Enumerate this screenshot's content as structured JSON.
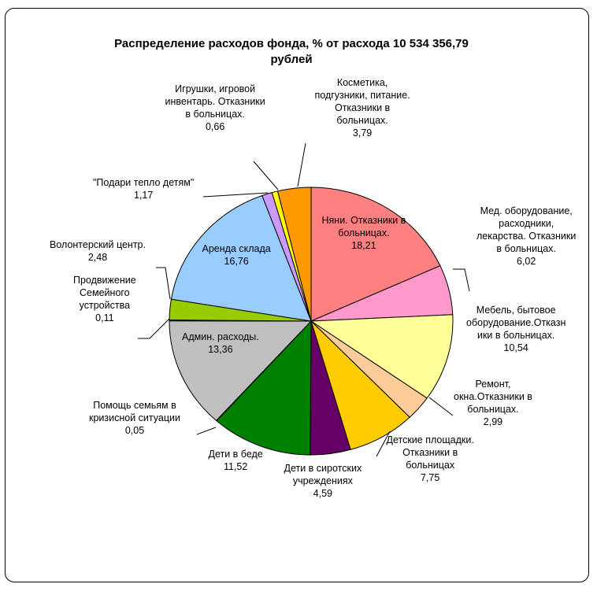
{
  "chart_data": {
    "type": "pie",
    "title_lines": [
      "Распределение расходов фонда, % от расхода 10 534 356,79",
      "рублей"
    ],
    "slices": [
      {
        "label_lines": [
          "Няни. Отказники в",
          "больницах."
        ],
        "value": 18.21,
        "value_text": "18,21",
        "color": "#ff8080"
      },
      {
        "label_lines": [
          "Мед. оборудование,",
          "расходники,",
          "лекарства. Отказники",
          "в больницах."
        ],
        "value": 6.02,
        "value_text": "6,02",
        "color": "#ff99cc"
      },
      {
        "label_lines": [
          "Мебель, бытовое",
          "оборудование.Отказн",
          "ики в больницах."
        ],
        "value": 10.54,
        "value_text": "10,54",
        "color": "#ffff99"
      },
      {
        "label_lines": [
          "Ремонт,",
          "окна.Отказники в",
          "больницах."
        ],
        "value": 2.99,
        "value_text": "2,99",
        "color": "#fdcc99"
      },
      {
        "label_lines": [
          "Детские площадки.",
          "Отказники в",
          "больницах"
        ],
        "value": 7.75,
        "value_text": "7,75",
        "color": "#ffcc00"
      },
      {
        "label_lines": [
          "Дети в сиротских",
          "учреждениях"
        ],
        "value": 4.59,
        "value_text": "4,59",
        "color": "#660066"
      },
      {
        "label_lines": [
          "Дети в беде"
        ],
        "value": 11.52,
        "value_text": "11,52",
        "color": "#008000"
      },
      {
        "label_lines": [
          "Помощь семьям в",
          "кризисной ситуации"
        ],
        "value": 0.05,
        "value_text": "0,05",
        "color": "#ffff00"
      },
      {
        "label_lines": [
          "Админ. расходы."
        ],
        "value": 13.36,
        "value_text": "13,36",
        "color": "#c0c0c0"
      },
      {
        "label_lines": [
          "Продвижение",
          "Семейного",
          "устройства"
        ],
        "value": 0.11,
        "value_text": "0,11",
        "color": "#808080"
      },
      {
        "label_lines": [
          "Волонтерский центр."
        ],
        "value": 2.48,
        "value_text": "2,48",
        "color": "#99cc00"
      },
      {
        "label_lines": [
          "Аренда склада"
        ],
        "value": 16.76,
        "value_text": "16,76",
        "color": "#99ccff"
      },
      {
        "label_lines": [
          "\"Подари тепло детям\""
        ],
        "value": 1.17,
        "value_text": "1,17",
        "color": "#cc99ff"
      },
      {
        "label_lines": [
          "Игрушки, игровой",
          "инвентарь. Отказники",
          "в больницах."
        ],
        "value": 0.66,
        "value_text": "0,66",
        "color": "#ffff00"
      },
      {
        "label_lines": [
          "Косметика,",
          "подгузники, питание.",
          "Отказники в",
          "больницах."
        ],
        "value": 3.79,
        "value_text": "3,79",
        "color": "#ff9900"
      }
    ],
    "legend": "none"
  }
}
